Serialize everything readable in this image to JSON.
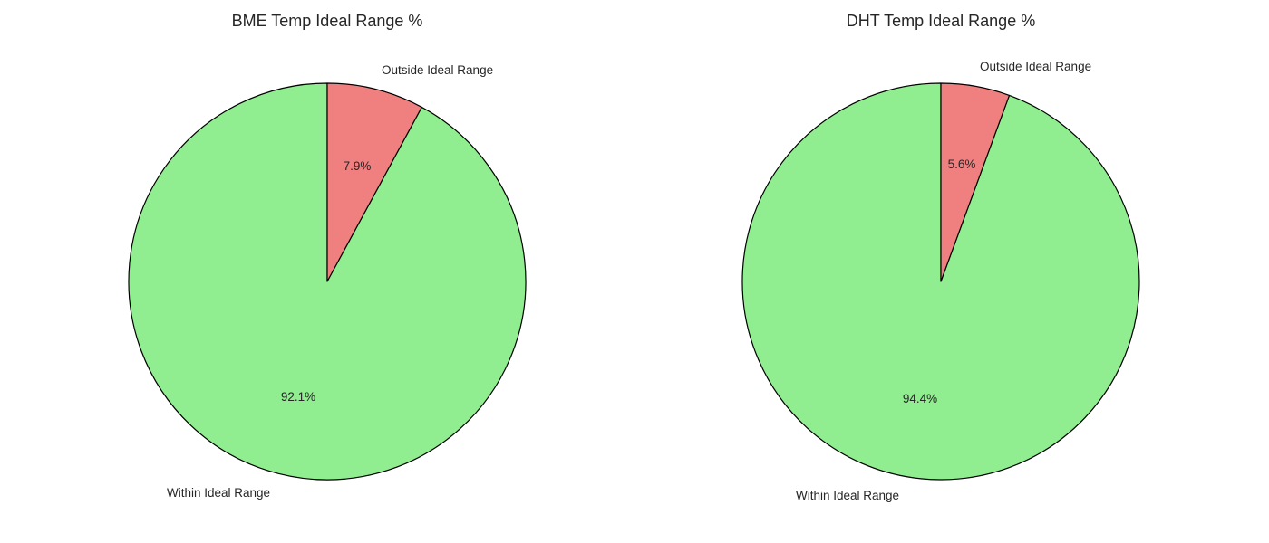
{
  "chart_data": [
    {
      "type": "pie",
      "title": "BME Temp Ideal Range %",
      "categories": [
        "Within Ideal Range",
        "Outside Ideal Range"
      ],
      "values": [
        92.1,
        7.9
      ],
      "value_labels": [
        "92.1%",
        "7.9%"
      ],
      "colors": [
        "#90EE90",
        "#F08080"
      ],
      "edge_color": "#000000",
      "start_angle_deg": 90,
      "direction": "counterclockwise",
      "legend": "none"
    },
    {
      "type": "pie",
      "title": "DHT Temp Ideal Range %",
      "categories": [
        "Within Ideal Range",
        "Outside Ideal Range"
      ],
      "values": [
        94.4,
        5.6
      ],
      "value_labels": [
        "94.4%",
        "5.6%"
      ],
      "colors": [
        "#90EE90",
        "#F08080"
      ],
      "edge_color": "#000000",
      "start_angle_deg": 90,
      "direction": "counterclockwise",
      "legend": "none"
    }
  ]
}
